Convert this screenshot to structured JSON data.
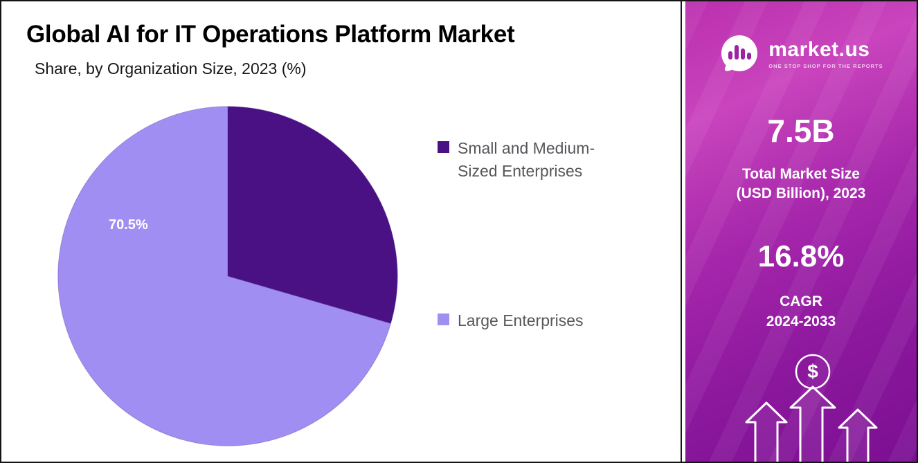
{
  "chart_data": {
    "type": "pie",
    "title": "Global AI for IT Operations Platform Market",
    "subtitle": "Share, by Organization Size, 2023 (%)",
    "unit": "%",
    "start_angle": "top",
    "direction": "clockwise",
    "legend_position": "right",
    "slices": [
      {
        "label": "Small and Medium-Sized Enterprises",
        "value": 29.5,
        "color": "#4a1184"
      },
      {
        "label": "Large Enterprises",
        "value": 70.5,
        "color": "#a18ef2"
      }
    ],
    "shown_data_label": "70.5%"
  },
  "sidebar": {
    "logo": {
      "name": "market.us",
      "tagline": "ONE STOP SHOP FOR THE REPORTS"
    },
    "stats": [
      {
        "value": "7.5B",
        "label": "Total Market Size\n(USD Billion), 2023"
      },
      {
        "value": "16.8%",
        "label": "CAGR\n2024-2033"
      }
    ],
    "dollar_sign": "$"
  }
}
